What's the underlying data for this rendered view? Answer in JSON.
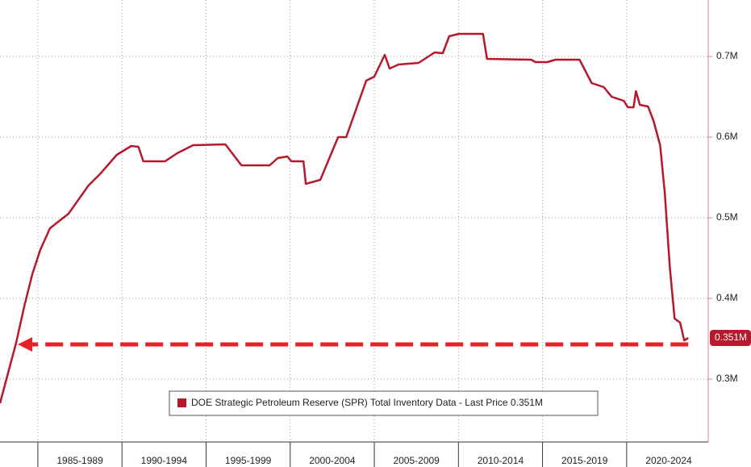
{
  "chart_data": {
    "type": "line",
    "x": [
      1982.75,
      1983.71,
      1984.19,
      1984.67,
      1985.14,
      1985.72,
      1986.82,
      1988.01,
      1988.73,
      1989.69,
      1990.55,
      1990.98,
      1991.27,
      1992.56,
      1993.28,
      1994.23,
      1996.15,
      1997.1,
      1998.78,
      1999.26,
      1999.83,
      2000.07,
      2000.79,
      2000.93,
      2001.79,
      2002.85,
      2003.33,
      2004.52,
      2005.0,
      2005.62,
      2005.91,
      2006.44,
      2007.63,
      2008.59,
      2009.07,
      2009.45,
      2010.02,
      2011.46,
      2011.7,
      2014.33,
      2014.57,
      2015.29,
      2015.77,
      2017.2,
      2017.92,
      2018.64,
      2019.11,
      2019.83,
      2020.07,
      2020.41,
      2020.55,
      2020.79,
      2021.27,
      2021.6,
      2021.99,
      2022.27,
      2022.56,
      2022.85,
      2023.18,
      2023.42,
      2023.66
    ],
    "series": [
      {
        "name": "DOE Strategic Petroleum Reserve (SPR) Total Inventory Data - Last Price 0.351M",
        "color": "#b5192b",
        "values": [
          0.27,
          0.345,
          0.39,
          0.43,
          0.46,
          0.487,
          0.505,
          0.54,
          0.555,
          0.578,
          0.589,
          0.588,
          0.57,
          0.57,
          0.58,
          0.59,
          0.591,
          0.565,
          0.565,
          0.574,
          0.576,
          0.57,
          0.57,
          0.542,
          0.547,
          0.6,
          0.6,
          0.67,
          0.675,
          0.702,
          0.685,
          0.69,
          0.692,
          0.705,
          0.704,
          0.725,
          0.728,
          0.728,
          0.697,
          0.696,
          0.693,
          0.693,
          0.696,
          0.696,
          0.667,
          0.662,
          0.65,
          0.645,
          0.637,
          0.637,
          0.657,
          0.64,
          0.638,
          0.62,
          0.59,
          0.53,
          0.44,
          0.375,
          0.37,
          0.348,
          0.351
        ],
        "last_label": "0.351M"
      }
    ],
    "xlim": [
      1982.75,
      2024.85
    ],
    "xticks": [
      {
        "value": 1987.5,
        "label": "1985-1989"
      },
      {
        "value": 1992.5,
        "label": "1990-1994"
      },
      {
        "value": 1997.5,
        "label": "1995-1999"
      },
      {
        "value": 2002.5,
        "label": "2000-2004"
      },
      {
        "value": 2007.5,
        "label": "2005-2009"
      },
      {
        "value": 2012.5,
        "label": "2010-2014"
      },
      {
        "value": 2017.5,
        "label": "2015-2019"
      },
      {
        "value": 2022.5,
        "label": "2020-2024"
      }
    ],
    "x_separators": [
      1985,
      1990,
      1995,
      2000,
      2005,
      2010,
      2015,
      2020
    ],
    "ylim": [
      0.222,
      0.77
    ],
    "yticks": [
      {
        "value": 0.3,
        "label": "0.3M"
      },
      {
        "value": 0.4,
        "label": "0.4M"
      },
      {
        "value": 0.5,
        "label": "0.5M"
      },
      {
        "value": 0.6,
        "label": "0.6M"
      },
      {
        "value": 0.7,
        "label": "0.7M"
      }
    ],
    "grid": true,
    "reference_arrow": {
      "value": 0.343,
      "color": "#e8202a"
    }
  }
}
